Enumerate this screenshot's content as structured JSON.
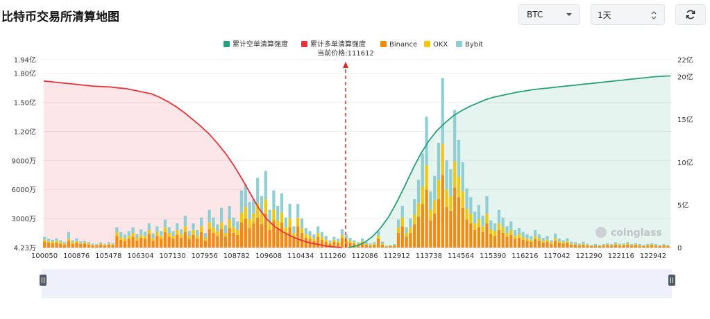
{
  "page": {
    "title": "比特币交易所清算地图",
    "coin_select": "BTC",
    "range_select": "1天",
    "refresh_icon": "refresh-icon"
  },
  "colors": {
    "short_cum": "#26a17b",
    "long_cum": "#e8333a",
    "binance": "#f28a0e",
    "okx": "#f2c70a",
    "bybit": "#8fcfd4",
    "current_price_line": "#d62c2c"
  },
  "chart_data": {
    "type": "bar",
    "legend": [
      "累计空单清算强度",
      "累计多单清算强度",
      "Binance",
      "OKX",
      "Bybit"
    ],
    "current_price_label": "当前价格:111612",
    "current_price": 111612,
    "x_ticks": [
      "100050",
      "100876",
      "105478",
      "106304",
      "107130",
      "107956",
      "108782",
      "109608",
      "110434",
      "111260",
      "112086",
      "112912",
      "113738",
      "114564",
      "115390",
      "116216",
      "117042",
      "121290",
      "122116",
      "122942"
    ],
    "y_left_ticks": [
      "4.23万",
      "3000万",
      "6000万",
      "9000万",
      "1.20亿",
      "1.50亿",
      "1.80亿",
      "1.94亿"
    ],
    "y_right_ticks": [
      "0",
      "5亿",
      "10亿",
      "15亿",
      "20亿",
      "22亿"
    ],
    "y_left_range_wan": [
      4.23,
      19400
    ],
    "y_right_range_yi": [
      0,
      22
    ],
    "bar_stacks_wan": {
      "note": "stacked per price bucket: [Binance, OKX, Bybit] in 万",
      "buckets": [
        [
          600,
          200,
          300
        ],
        [
          500,
          150,
          250
        ],
        [
          450,
          150,
          200
        ],
        [
          500,
          200,
          250
        ],
        [
          400,
          150,
          200
        ],
        [
          300,
          100,
          150
        ],
        [
          700,
          200,
          700
        ],
        [
          400,
          150,
          200
        ],
        [
          500,
          150,
          300
        ],
        [
          350,
          100,
          200
        ],
        [
          400,
          150,
          150
        ],
        [
          300,
          100,
          150
        ],
        [
          200,
          80,
          120
        ],
        [
          200,
          60,
          100
        ],
        [
          300,
          100,
          150
        ],
        [
          200,
          80,
          100
        ],
        [
          300,
          100,
          150
        ],
        [
          250,
          80,
          120
        ],
        [
          1200,
          400,
          500
        ],
        [
          800,
          300,
          500
        ],
        [
          700,
          250,
          400
        ],
        [
          900,
          300,
          500
        ],
        [
          1100,
          400,
          600
        ],
        [
          700,
          300,
          400
        ],
        [
          1000,
          300,
          600
        ],
        [
          900,
          250,
          500
        ],
        [
          1400,
          400,
          700
        ],
        [
          700,
          250,
          500
        ],
        [
          1200,
          400,
          600
        ],
        [
          900,
          300,
          500
        ],
        [
          1600,
          500,
          800
        ],
        [
          1100,
          400,
          600
        ],
        [
          900,
          300,
          500
        ],
        [
          1300,
          500,
          700
        ],
        [
          1000,
          400,
          500
        ],
        [
          1600,
          600,
          1100
        ],
        [
          900,
          300,
          500
        ],
        [
          1300,
          500,
          700
        ],
        [
          900,
          300,
          600
        ],
        [
          1600,
          600,
          900
        ],
        [
          700,
          300,
          500
        ],
        [
          1900,
          700,
          1300
        ],
        [
          1500,
          600,
          1000
        ],
        [
          1200,
          500,
          700
        ],
        [
          1900,
          700,
          1500
        ],
        [
          1100,
          400,
          800
        ],
        [
          2000,
          900,
          1400
        ],
        [
          1500,
          600,
          1000
        ],
        [
          1300,
          500,
          900
        ],
        [
          2600,
          1000,
          2300
        ],
        [
          3000,
          1200,
          2300
        ],
        [
          2000,
          900,
          1800
        ],
        [
          2500,
          1000,
          1500
        ],
        [
          3100,
          1400,
          2700
        ],
        [
          2400,
          1100,
          1800
        ],
        [
          3500,
          1500,
          2900
        ],
        [
          1800,
          800,
          1300
        ],
        [
          2800,
          1100,
          2000
        ],
        [
          2000,
          800,
          1500
        ],
        [
          2600,
          1000,
          2000
        ],
        [
          1500,
          600,
          1000
        ],
        [
          2100,
          900,
          1500
        ],
        [
          1100,
          400,
          700
        ],
        [
          2200,
          900,
          1400
        ],
        [
          1500,
          500,
          1000
        ],
        [
          1000,
          400,
          600
        ],
        [
          900,
          300,
          500
        ],
        [
          700,
          250,
          400
        ],
        [
          1100,
          400,
          700
        ],
        [
          800,
          300,
          500
        ],
        [
          600,
          200,
          400
        ],
        [
          400,
          150,
          200
        ],
        [
          600,
          200,
          300
        ],
        [
          500,
          150,
          250
        ],
        [
          1000,
          300,
          600
        ],
        [
          700,
          250,
          400
        ],
        [
          500,
          200,
          300
        ],
        [
          400,
          150,
          200
        ],
        [
          300,
          100,
          150
        ],
        [
          500,
          150,
          300
        ],
        [
          300,
          100,
          150
        ],
        [
          200,
          80,
          120
        ],
        [
          300,
          100,
          150
        ],
        [
          900,
          300,
          500
        ],
        [
          300,
          100,
          200
        ],
        [
          100,
          40,
          60
        ],
        [
          150,
          50,
          80
        ],
        [
          200,
          60,
          100
        ],
        [
          1500,
          600,
          800
        ],
        [
          2200,
          900,
          1200
        ],
        [
          1100,
          400,
          600
        ],
        [
          1500,
          600,
          900
        ],
        [
          2400,
          1000,
          1600
        ],
        [
          3200,
          1400,
          2400
        ],
        [
          4500,
          1800,
          3400
        ],
        [
          6000,
          2500,
          5000
        ],
        [
          2800,
          1100,
          1900
        ],
        [
          3500,
          1400,
          2500
        ],
        [
          5000,
          2000,
          3800
        ],
        [
          7500,
          3200,
          6800
        ],
        [
          4200,
          1800,
          3000
        ],
        [
          3800,
          1500,
          2800
        ],
        [
          6200,
          2700,
          5300
        ],
        [
          5200,
          2100,
          3800
        ],
        [
          4100,
          1700,
          3000
        ],
        [
          2900,
          1100,
          2100
        ],
        [
          2500,
          1000,
          1700
        ],
        [
          1800,
          700,
          1200
        ],
        [
          2100,
          800,
          1500
        ],
        [
          1600,
          600,
          1100
        ],
        [
          2500,
          1000,
          1800
        ],
        [
          1400,
          500,
          900
        ],
        [
          1200,
          500,
          800
        ],
        [
          1800,
          700,
          1400
        ],
        [
          1500,
          600,
          1000
        ],
        [
          1100,
          400,
          700
        ],
        [
          1300,
          500,
          900
        ],
        [
          900,
          300,
          600
        ],
        [
          1000,
          400,
          600
        ],
        [
          800,
          300,
          500
        ],
        [
          700,
          250,
          400
        ],
        [
          600,
          200,
          400
        ],
        [
          900,
          300,
          600
        ],
        [
          700,
          250,
          400
        ],
        [
          500,
          200,
          300
        ],
        [
          600,
          200,
          400
        ],
        [
          400,
          150,
          200
        ],
        [
          700,
          250,
          500
        ],
        [
          500,
          150,
          300
        ],
        [
          400,
          150,
          200
        ],
        [
          500,
          150,
          300
        ],
        [
          300,
          100,
          200
        ],
        [
          300,
          100,
          150
        ],
        [
          200,
          80,
          120
        ],
        [
          300,
          100,
          200
        ],
        [
          200,
          80,
          120
        ],
        [
          150,
          50,
          80
        ],
        [
          200,
          60,
          100
        ],
        [
          150,
          50,
          80
        ],
        [
          200,
          60,
          100
        ],
        [
          250,
          80,
          120
        ],
        [
          200,
          60,
          100
        ],
        [
          300,
          100,
          150
        ],
        [
          200,
          80,
          120
        ],
        [
          250,
          80,
          120
        ],
        [
          300,
          100,
          150
        ],
        [
          200,
          60,
          100
        ],
        [
          250,
          80,
          120
        ],
        [
          200,
          60,
          100
        ],
        [
          150,
          50,
          80
        ],
        [
          200,
          60,
          100
        ],
        [
          250,
          80,
          120
        ],
        [
          200,
          60,
          100
        ],
        [
          150,
          50,
          80
        ],
        [
          200,
          60,
          100
        ],
        [
          150,
          50,
          80
        ]
      ]
    },
    "long_cum_yi": [
      19.5,
      19.4,
      19.3,
      19.2,
      19.1,
      19.0,
      18.9,
      18.85,
      18.8,
      18.7,
      18.6,
      18.4,
      18.2,
      18.0,
      17.6,
      17.1,
      16.5,
      15.8,
      15.0,
      14.2,
      13.3,
      12.2,
      11.0,
      9.6,
      8.0,
      6.3,
      4.6,
      3.3,
      2.4,
      1.8,
      1.3,
      0.9,
      0.6,
      0.4,
      0.2,
      0.08,
      0
    ],
    "short_cum_yi": [
      0,
      0.2,
      0.6,
      1.3,
      2.3,
      3.6,
      5.3,
      7.2,
      9.2,
      11.0,
      12.5,
      13.7,
      14.6,
      15.4,
      16.0,
      16.5,
      16.9,
      17.3,
      17.6,
      17.8,
      18.0,
      18.2,
      18.35,
      18.5,
      18.6,
      18.7,
      18.8,
      18.9,
      19.0,
      19.1,
      19.2,
      19.3,
      19.4,
      19.5,
      19.6,
      19.7,
      19.8,
      19.9,
      20.0,
      20.05,
      20.1
    ]
  },
  "watermark": "coinglass",
  "slider": {
    "left_handle_icon": "pause-handle-icon",
    "right_handle_icon": "pause-handle-icon"
  }
}
